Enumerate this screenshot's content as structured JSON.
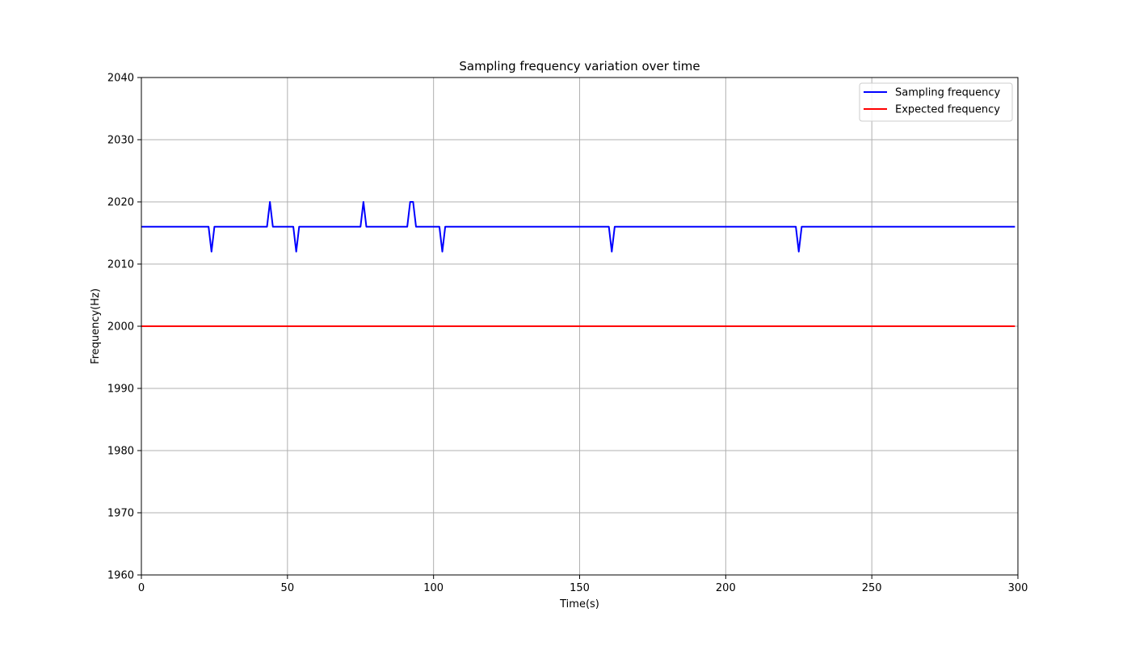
{
  "chart_data": {
    "type": "line",
    "title": "Sampling frequency variation over time",
    "xlabel": "Time(s)",
    "ylabel": "Frequency(Hz)",
    "xlim": [
      0,
      300
    ],
    "ylim": [
      1960,
      2040
    ],
    "xticks": [
      0,
      50,
      100,
      150,
      200,
      250,
      300
    ],
    "yticks": [
      1960,
      1970,
      1980,
      1990,
      2000,
      2010,
      2020,
      2030,
      2040
    ],
    "grid": true,
    "legend_position": "top-right",
    "series": [
      {
        "name": "Sampling frequency",
        "color": "#0000ff",
        "x": [
          0,
          23,
          24,
          25,
          43,
          44,
          45,
          52,
          53,
          54,
          75,
          76,
          77,
          91,
          92,
          93,
          94,
          102,
          103,
          104,
          160,
          161,
          162,
          224,
          225,
          226,
          299
        ],
        "y": [
          2016,
          2016,
          2012,
          2016,
          2016,
          2020,
          2016,
          2016,
          2012,
          2016,
          2016,
          2020,
          2016,
          2016,
          2020,
          2020,
          2016,
          2016,
          2012,
          2016,
          2016,
          2012,
          2016,
          2016,
          2012,
          2016,
          2016
        ]
      },
      {
        "name": "Expected frequency",
        "color": "#ff0000",
        "x": [
          0,
          299
        ],
        "y": [
          2000,
          2000
        ]
      }
    ]
  }
}
